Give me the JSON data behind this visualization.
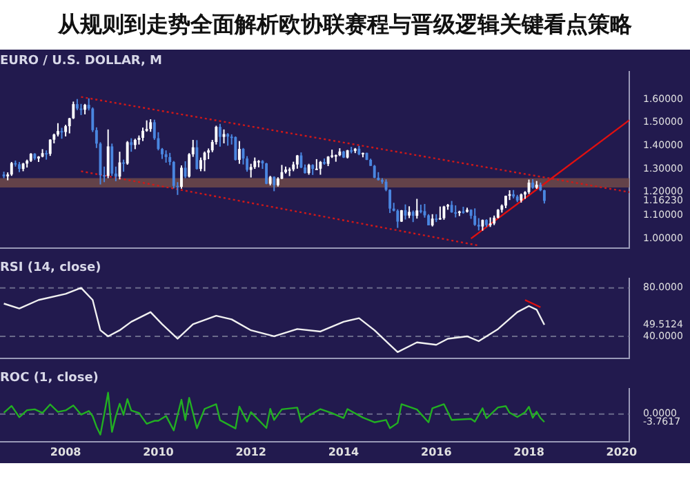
{
  "chart_data": [
    {
      "type": "candlestick",
      "title": "从规则到走势全面解析欧协联赛程与晋级逻辑关键看点策略",
      "subtitle": "EURO / U.S. DOLLAR, M",
      "x": [
        "2006-09",
        "2006-10",
        "2006-11",
        "2006-12",
        "2007-01",
        "2007-02",
        "2007-03",
        "2007-04",
        "2007-05",
        "2007-06",
        "2007-07",
        "2007-08",
        "2007-09",
        "2007-10",
        "2007-11",
        "2007-12",
        "2008-01",
        "2008-02",
        "2008-03",
        "2008-04",
        "2008-05",
        "2008-06",
        "2008-07",
        "2008-08",
        "2008-09",
        "2008-10",
        "2008-11",
        "2008-12",
        "2009-01",
        "2009-02",
        "2009-03",
        "2009-04",
        "2009-05",
        "2009-06",
        "2009-07",
        "2009-08",
        "2009-09",
        "2009-10",
        "2009-11",
        "2009-12",
        "2010-01",
        "2010-02",
        "2010-03",
        "2010-04",
        "2010-05",
        "2010-06",
        "2010-07",
        "2010-08",
        "2010-09",
        "2010-10",
        "2010-11",
        "2010-12",
        "2011-01",
        "2011-02",
        "2011-03",
        "2011-04",
        "2011-05",
        "2011-06",
        "2011-07",
        "2011-08",
        "2011-09",
        "2011-10",
        "2011-11",
        "2011-12",
        "2012-01",
        "2012-02",
        "2012-03",
        "2012-04",
        "2012-05",
        "2012-06",
        "2012-07",
        "2012-08",
        "2012-09",
        "2012-10",
        "2012-11",
        "2012-12",
        "2013-01",
        "2013-02",
        "2013-03",
        "2013-04",
        "2013-05",
        "2013-06",
        "2013-07",
        "2013-08",
        "2013-09",
        "2013-10",
        "2013-11",
        "2013-12",
        "2014-01",
        "2014-02",
        "2014-03",
        "2014-04",
        "2014-05",
        "2014-06",
        "2014-07",
        "2014-08",
        "2014-09",
        "2014-10",
        "2014-11",
        "2014-12",
        "2015-01",
        "2015-02",
        "2015-03",
        "2015-04",
        "2015-05",
        "2015-06",
        "2015-07",
        "2015-08",
        "2015-09",
        "2015-10",
        "2015-11",
        "2015-12",
        "2016-01",
        "2016-02",
        "2016-03",
        "2016-04",
        "2016-05",
        "2016-06",
        "2016-07",
        "2016-08",
        "2016-09",
        "2016-10",
        "2016-11",
        "2016-12",
        "2017-01",
        "2017-02",
        "2017-03",
        "2017-04",
        "2017-05",
        "2017-06",
        "2017-07",
        "2017-08",
        "2017-09",
        "2017-10",
        "2017-11",
        "2017-12",
        "2018-01",
        "2018-02",
        "2018-03",
        "2018-04",
        "2018-05"
      ],
      "ohlc": [
        [
          1.276,
          1.288,
          1.26,
          1.268
        ],
        [
          1.268,
          1.285,
          1.251,
          1.276
        ],
        [
          1.276,
          1.33,
          1.27,
          1.325
        ],
        [
          1.325,
          1.336,
          1.31,
          1.32
        ],
        [
          1.32,
          1.33,
          1.286,
          1.3
        ],
        [
          1.3,
          1.326,
          1.29,
          1.323
        ],
        [
          1.323,
          1.34,
          1.306,
          1.335
        ],
        [
          1.335,
          1.368,
          1.33,
          1.365
        ],
        [
          1.365,
          1.368,
          1.338,
          1.345
        ],
        [
          1.345,
          1.355,
          1.33,
          1.353
        ],
        [
          1.353,
          1.385,
          1.35,
          1.368
        ],
        [
          1.368,
          1.38,
          1.34,
          1.365
        ],
        [
          1.365,
          1.428,
          1.356,
          1.426
        ],
        [
          1.426,
          1.452,
          1.41,
          1.448
        ],
        [
          1.448,
          1.497,
          1.44,
          1.463
        ],
        [
          1.463,
          1.477,
          1.43,
          1.459
        ],
        [
          1.459,
          1.49,
          1.44,
          1.484
        ],
        [
          1.484,
          1.52,
          1.453,
          1.518
        ],
        [
          1.518,
          1.59,
          1.515,
          1.579
        ],
        [
          1.579,
          1.601,
          1.553,
          1.56
        ],
        [
          1.56,
          1.58,
          1.532,
          1.555
        ],
        [
          1.555,
          1.58,
          1.535,
          1.576
        ],
        [
          1.576,
          1.604,
          1.552,
          1.56
        ],
        [
          1.56,
          1.565,
          1.459,
          1.467
        ],
        [
          1.467,
          1.479,
          1.39,
          1.409
        ],
        [
          1.409,
          1.415,
          1.233,
          1.273
        ],
        [
          1.273,
          1.31,
          1.243,
          1.27
        ],
        [
          1.27,
          1.47,
          1.26,
          1.397
        ],
        [
          1.397,
          1.409,
          1.27,
          1.28
        ],
        [
          1.28,
          1.31,
          1.247,
          1.267
        ],
        [
          1.267,
          1.374,
          1.255,
          1.328
        ],
        [
          1.328,
          1.34,
          1.288,
          1.323
        ],
        [
          1.323,
          1.42,
          1.318,
          1.415
        ],
        [
          1.415,
          1.432,
          1.374,
          1.403
        ],
        [
          1.403,
          1.43,
          1.385,
          1.425
        ],
        [
          1.425,
          1.444,
          1.405,
          1.434
        ],
        [
          1.434,
          1.478,
          1.42,
          1.464
        ],
        [
          1.464,
          1.509,
          1.46,
          1.472
        ],
        [
          1.472,
          1.514,
          1.46,
          1.501
        ],
        [
          1.501,
          1.512,
          1.425,
          1.432
        ],
        [
          1.432,
          1.458,
          1.38,
          1.386
        ],
        [
          1.386,
          1.39,
          1.343,
          1.363
        ],
        [
          1.363,
          1.38,
          1.327,
          1.351
        ],
        [
          1.351,
          1.369,
          1.316,
          1.33
        ],
        [
          1.33,
          1.334,
          1.216,
          1.227
        ],
        [
          1.227,
          1.243,
          1.188,
          1.223
        ],
        [
          1.223,
          1.315,
          1.215,
          1.305
        ],
        [
          1.305,
          1.333,
          1.26,
          1.267
        ],
        [
          1.267,
          1.368,
          1.263,
          1.363
        ],
        [
          1.363,
          1.425,
          1.352,
          1.393
        ],
        [
          1.393,
          1.424,
          1.297,
          1.3
        ],
        [
          1.3,
          1.349,
          1.29,
          1.338
        ],
        [
          1.338,
          1.375,
          1.29,
          1.37
        ],
        [
          1.37,
          1.388,
          1.342,
          1.38
        ],
        [
          1.38,
          1.425,
          1.372,
          1.416
        ],
        [
          1.416,
          1.486,
          1.405,
          1.481
        ],
        [
          1.481,
          1.494,
          1.396,
          1.438
        ],
        [
          1.438,
          1.47,
          1.41,
          1.45
        ],
        [
          1.45,
          1.454,
          1.4,
          1.439
        ],
        [
          1.439,
          1.449,
          1.405,
          1.437
        ],
        [
          1.437,
          1.44,
          1.336,
          1.339
        ],
        [
          1.339,
          1.42,
          1.322,
          1.386
        ],
        [
          1.386,
          1.39,
          1.319,
          1.345
        ],
        [
          1.345,
          1.355,
          1.288,
          1.296
        ],
        [
          1.296,
          1.322,
          1.263,
          1.308
        ],
        [
          1.308,
          1.349,
          1.3,
          1.334
        ],
        [
          1.334,
          1.338,
          1.307,
          1.334
        ],
        [
          1.334,
          1.338,
          1.3,
          1.324
        ],
        [
          1.324,
          1.326,
          1.234,
          1.236
        ],
        [
          1.236,
          1.27,
          1.229,
          1.266
        ],
        [
          1.266,
          1.268,
          1.204,
          1.23
        ],
        [
          1.23,
          1.264,
          1.224,
          1.258
        ],
        [
          1.258,
          1.317,
          1.256,
          1.286
        ],
        [
          1.286,
          1.31,
          1.28,
          1.297
        ],
        [
          1.297,
          1.306,
          1.269,
          1.298
        ],
        [
          1.298,
          1.331,
          1.29,
          1.319
        ],
        [
          1.319,
          1.36,
          1.301,
          1.358
        ],
        [
          1.358,
          1.371,
          1.303,
          1.306
        ],
        [
          1.306,
          1.319,
          1.28,
          1.282
        ],
        [
          1.282,
          1.322,
          1.275,
          1.317
        ],
        [
          1.317,
          1.32,
          1.274,
          1.3
        ],
        [
          1.3,
          1.342,
          1.297,
          1.301
        ],
        [
          1.301,
          1.334,
          1.275,
          1.33
        ],
        [
          1.33,
          1.345,
          1.318,
          1.322
        ],
        [
          1.322,
          1.355,
          1.312,
          1.353
        ],
        [
          1.353,
          1.383,
          1.347,
          1.358
        ],
        [
          1.358,
          1.362,
          1.331,
          1.359
        ],
        [
          1.359,
          1.389,
          1.355,
          1.375
        ],
        [
          1.375,
          1.378,
          1.347,
          1.349
        ],
        [
          1.349,
          1.382,
          1.345,
          1.38
        ],
        [
          1.38,
          1.395,
          1.367,
          1.377
        ],
        [
          1.377,
          1.39,
          1.368,
          1.387
        ],
        [
          1.387,
          1.399,
          1.359,
          1.363
        ],
        [
          1.363,
          1.37,
          1.35,
          1.369
        ],
        [
          1.369,
          1.37,
          1.338,
          1.339
        ],
        [
          1.339,
          1.344,
          1.313,
          1.313
        ],
        [
          1.313,
          1.317,
          1.26,
          1.262
        ],
        [
          1.262,
          1.286,
          1.25,
          1.252
        ],
        [
          1.252,
          1.26,
          1.236,
          1.245
        ],
        [
          1.245,
          1.255,
          1.204,
          1.21
        ],
        [
          1.21,
          1.212,
          1.11,
          1.129
        ],
        [
          1.129,
          1.154,
          1.117,
          1.12
        ],
        [
          1.12,
          1.126,
          1.046,
          1.073
        ],
        [
          1.073,
          1.123,
          1.072,
          1.122
        ],
        [
          1.122,
          1.147,
          1.082,
          1.099
        ],
        [
          1.099,
          1.139,
          1.088,
          1.115
        ],
        [
          1.115,
          1.121,
          1.071,
          1.098
        ],
        [
          1.098,
          1.171,
          1.086,
          1.121
        ],
        [
          1.121,
          1.146,
          1.109,
          1.118
        ],
        [
          1.118,
          1.149,
          1.09,
          1.1
        ],
        [
          1.1,
          1.105,
          1.057,
          1.057
        ],
        [
          1.057,
          1.105,
          1.052,
          1.086
        ],
        [
          1.086,
          1.105,
          1.071,
          1.083
        ],
        [
          1.083,
          1.138,
          1.081,
          1.088
        ],
        [
          1.088,
          1.141,
          1.081,
          1.138
        ],
        [
          1.138,
          1.149,
          1.124,
          1.145
        ],
        [
          1.145,
          1.162,
          1.111,
          1.113
        ],
        [
          1.113,
          1.143,
          1.091,
          1.11
        ],
        [
          1.11,
          1.12,
          1.097,
          1.117
        ],
        [
          1.117,
          1.137,
          1.107,
          1.115
        ],
        [
          1.115,
          1.133,
          1.112,
          1.124
        ],
        [
          1.124,
          1.126,
          1.085,
          1.098
        ],
        [
          1.098,
          1.13,
          1.055,
          1.059
        ],
        [
          1.059,
          1.088,
          1.035,
          1.052
        ],
        [
          1.052,
          1.082,
          1.034,
          1.08
        ],
        [
          1.08,
          1.083,
          1.05,
          1.058
        ],
        [
          1.058,
          1.091,
          1.05,
          1.065
        ],
        [
          1.065,
          1.099,
          1.058,
          1.09
        ],
        [
          1.09,
          1.127,
          1.087,
          1.124
        ],
        [
          1.124,
          1.147,
          1.112,
          1.142
        ],
        [
          1.142,
          1.185,
          1.131,
          1.184
        ],
        [
          1.184,
          1.208,
          1.166,
          1.191
        ],
        [
          1.191,
          1.209,
          1.173,
          1.181
        ],
        [
          1.181,
          1.188,
          1.157,
          1.164
        ],
        [
          1.164,
          1.194,
          1.155,
          1.19
        ],
        [
          1.19,
          1.204,
          1.171,
          1.2
        ],
        [
          1.2,
          1.254,
          1.192,
          1.241
        ],
        [
          1.241,
          1.256,
          1.215,
          1.219
        ],
        [
          1.219,
          1.248,
          1.214,
          1.232
        ],
        [
          1.232,
          1.241,
          1.204,
          1.208
        ],
        [
          1.208,
          1.21,
          1.151,
          1.1623
        ]
      ],
      "colors": [
        "#4a86e0",
        "#ffffff",
        "#ffffff",
        "#4a86e0",
        "#4a86e0",
        "#ffffff",
        "#ffffff",
        "#ffffff",
        "#4a86e0",
        "#ffffff",
        "#ffffff",
        "#4a86e0",
        "#ffffff",
        "#ffffff",
        "#ffffff",
        "#4a86e0",
        "#ffffff",
        "#ffffff",
        "#ffffff",
        "#4a86e0",
        "#4a86e0",
        "#ffffff",
        "#4a86e0",
        "#4a86e0",
        "#4a86e0",
        "#4a86e0",
        "#4a86e0",
        "#ffffff",
        "#4a86e0",
        "#4a86e0",
        "#ffffff",
        "#4a86e0",
        "#ffffff",
        "#4a86e0",
        "#ffffff",
        "#ffffff",
        "#ffffff",
        "#ffffff",
        "#ffffff",
        "#4a86e0",
        "#4a86e0",
        "#4a86e0",
        "#4a86e0",
        "#4a86e0",
        "#4a86e0",
        "#4a86e0",
        "#ffffff",
        "#4a86e0",
        "#ffffff",
        "#ffffff",
        "#4a86e0",
        "#ffffff",
        "#ffffff",
        "#ffffff",
        "#ffffff",
        "#ffffff",
        "#4a86e0",
        "#ffffff",
        "#4a86e0",
        "#4a86e0",
        "#4a86e0",
        "#ffffff",
        "#4a86e0",
        "#4a86e0",
        "#ffffff",
        "#ffffff",
        "#ffffff",
        "#4a86e0",
        "#4a86e0",
        "#ffffff",
        "#4a86e0",
        "#ffffff",
        "#ffffff",
        "#ffffff",
        "#ffffff",
        "#ffffff",
        "#ffffff",
        "#4a86e0",
        "#4a86e0",
        "#ffffff",
        "#4a86e0",
        "#ffffff",
        "#ffffff",
        "#4a86e0",
        "#ffffff",
        "#ffffff",
        "#ffffff",
        "#ffffff",
        "#4a86e0",
        "#ffffff",
        "#4a86e0",
        "#ffffff",
        "#4a86e0",
        "#ffffff",
        "#4a86e0",
        "#4a86e0",
        "#4a86e0",
        "#4a86e0",
        "#4a86e0",
        "#4a86e0",
        "#4a86e0",
        "#4a86e0",
        "#4a86e0",
        "#ffffff",
        "#4a86e0",
        "#ffffff",
        "#4a86e0",
        "#ffffff",
        "#4a86e0",
        "#4a86e0",
        "#4a86e0",
        "#ffffff",
        "#4a86e0",
        "#ffffff",
        "#ffffff",
        "#ffffff",
        "#4a86e0",
        "#4a86e0",
        "#ffffff",
        "#4a86e0",
        "#ffffff",
        "#4a86e0",
        "#4a86e0",
        "#4a86e0",
        "#ffffff",
        "#4a86e0",
        "#ffffff",
        "#ffffff",
        "#ffffff",
        "#ffffff",
        "#ffffff",
        "#ffffff",
        "#4a86e0",
        "#4a86e0",
        "#ffffff",
        "#ffffff",
        "#ffffff",
        "#4a86e0",
        "#ffffff",
        "#4a86e0",
        "#4a86e0"
      ],
      "series": [
        {
          "type": "line",
          "color": "#d01818",
          "line_style": "dotted",
          "x": [
            "2008-05",
            "2020-03"
          ],
          "values": [
            1.61,
            1.2
          ]
        },
        {
          "type": "line",
          "color": "#d01818",
          "line_style": "dotted",
          "x": [
            "2008-05",
            "2016-12"
          ],
          "values": [
            1.29,
            0.97
          ]
        },
        {
          "type": "line",
          "color": "#e01010",
          "line_style": "solid",
          "x": [
            "2016-10",
            "2020-03"
          ],
          "values": [
            1.0,
            1.51
          ]
        }
      ],
      "bands": [
        {
          "axis": "y",
          "from": 1.22,
          "to": 1.26,
          "color": "#7a5048"
        }
      ],
      "xlim": [
        "2006-08",
        "2020-03"
      ],
      "xticks": [
        "2008",
        "2010",
        "2012",
        "2014",
        "2016",
        "2018",
        "2020"
      ],
      "ylim": [
        0.96,
        1.72
      ],
      "yticks": [
        {
          "value": 1.6,
          "label": "1.60000"
        },
        {
          "value": 1.5,
          "label": "1.50000"
        },
        {
          "value": 1.4,
          "label": "1.40000"
        },
        {
          "value": 1.3,
          "label": "1.30000"
        },
        {
          "value": 1.2,
          "label": "1.20000"
        },
        {
          "value": 1.1623,
          "label": "1.16230"
        },
        {
          "value": 1.1,
          "label": "1.10000"
        },
        {
          "value": 1.0,
          "label": "1.00000"
        }
      ],
      "tick_labels": "y"
    },
    {
      "type": "line",
      "title": "RSI (14, close)",
      "series": [
        {
          "color": "#f0f0f0",
          "x": [
            "2006-09",
            "2007-01",
            "2007-06",
            "2008-01",
            "2008-05",
            "2008-08",
            "2008-10",
            "2008-12",
            "2009-03",
            "2009-06",
            "2009-11",
            "2010-02",
            "2010-06",
            "2010-10",
            "2011-04",
            "2011-08",
            "2012-01",
            "2012-07",
            "2013-01",
            "2013-07",
            "2014-01",
            "2014-05",
            "2014-09",
            "2015-01",
            "2015-03",
            "2015-08",
            "2016-01",
            "2016-04",
            "2016-09",
            "2016-12",
            "2017-05",
            "2017-10",
            "2018-01",
            "2018-03",
            "2018-05"
          ],
          "values": [
            67,
            63,
            70,
            75,
            80,
            70,
            45,
            40,
            45,
            52,
            60,
            50,
            38,
            50,
            57,
            54,
            45,
            40,
            46,
            44,
            52,
            55,
            45,
            33,
            27,
            35,
            33,
            38,
            40,
            36,
            46,
            60,
            65,
            62,
            49.5124
          ]
        },
        {
          "color": "#e01010",
          "x": [
            "2017-12",
            "2018-04"
          ],
          "values": [
            70,
            64
          ]
        }
      ],
      "ref_lines": [
        {
          "axis": "y",
          "value": 80,
          "line_style": "dashed",
          "color": "#6a6a8a"
        },
        {
          "axis": "y",
          "value": 40,
          "line_style": "dashed",
          "color": "#6a6a8a"
        }
      ],
      "xlim": [
        "2006-08",
        "2020-03"
      ],
      "xticks": [
        "2008",
        "2010",
        "2012",
        "2014",
        "2016",
        "2018",
        "2020"
      ],
      "ylim": [
        22,
        88
      ],
      "yticks": [
        {
          "value": 80,
          "label": "80.0000"
        },
        {
          "value": 49.5124,
          "label": "49.5124"
        },
        {
          "value": 40,
          "label": "40.0000"
        }
      ],
      "tick_labels": "y"
    },
    {
      "type": "line",
      "title": "ROC (1, close)",
      "series": [
        {
          "color": "#22b022",
          "x": [
            "2006-09",
            "2006-11",
            "2007-01",
            "2007-03",
            "2007-05",
            "2007-07",
            "2007-09",
            "2007-11",
            "2008-01",
            "2008-03",
            "2008-05",
            "2008-07",
            "2008-08",
            "2008-09",
            "2008-10",
            "2008-11",
            "2008-12",
            "2009-01",
            "2009-02",
            "2009-03",
            "2009-04",
            "2009-05",
            "2009-06",
            "2009-08",
            "2009-10",
            "2009-12",
            "2010-01",
            "2010-03",
            "2010-05",
            "2010-07",
            "2010-08",
            "2010-09",
            "2010-11",
            "2011-01",
            "2011-04",
            "2011-05",
            "2011-09",
            "2011-10",
            "2011-12",
            "2012-01",
            "2012-05",
            "2012-06",
            "2012-07",
            "2012-09",
            "2013-01",
            "2013-02",
            "2013-03",
            "2013-07",
            "2013-10",
            "2014-01",
            "2014-02",
            "2014-06",
            "2014-09",
            "2014-12",
            "2015-01",
            "2015-03",
            "2015-04",
            "2015-08",
            "2015-11",
            "2015-12",
            "2016-03",
            "2016-05",
            "2016-10",
            "2016-11",
            "2017-01",
            "2017-02",
            "2017-05",
            "2017-07",
            "2017-08",
            "2017-10",
            "2017-12",
            "2018-01",
            "2018-02",
            "2018-03",
            "2018-04",
            "2018-05"
          ],
          "values": [
            0.6,
            3.8,
            -1.5,
            1.8,
            2.2,
            0.5,
            4.5,
            1.0,
            1.7,
            4.0,
            -0.3,
            1.4,
            -1.0,
            -6.0,
            -9.7,
            -0.2,
            10.0,
            -8.4,
            -1.0,
            4.8,
            -0.4,
            7.0,
            1.6,
            0.5,
            -4.6,
            -3.2,
            -3.2,
            -0.9,
            -7.7,
            6.7,
            -2.9,
            7.6,
            -6.7,
            2.4,
            4.6,
            -2.9,
            -6.8,
            3.5,
            -3.6,
            0.9,
            -6.6,
            2.4,
            -2.8,
            2.2,
            3.0,
            -3.8,
            -1.8,
            2.3,
            0.4,
            -1.9,
            2.3,
            -1.7,
            -3.9,
            -2.8,
            -6.7,
            -4.2,
            4.6,
            2.1,
            -3.9,
            2.7,
            4.6,
            -2.8,
            -2.3,
            -3.6,
            2.7,
            -2.0,
            3.1,
            3.7,
            0.6,
            -1.4,
            0.8,
            3.4,
            -1.8,
            1.1,
            -1.9,
            -3.7617
          ]
        }
      ],
      "ref_lines": [
        {
          "axis": "y",
          "value": 0,
          "line_style": "dashed",
          "color": "#6a6a8a"
        }
      ],
      "xlim": [
        "2006-08",
        "2020-03"
      ],
      "xticks": [
        "2008",
        "2010",
        "2012",
        "2014",
        "2016",
        "2018",
        "2020"
      ],
      "ylim": [
        -13,
        12
      ],
      "yticks": [
        {
          "value": 0,
          "label": "0.0000"
        },
        {
          "value": -3.7617,
          "label": "-3.7617"
        }
      ]
    }
  ]
}
